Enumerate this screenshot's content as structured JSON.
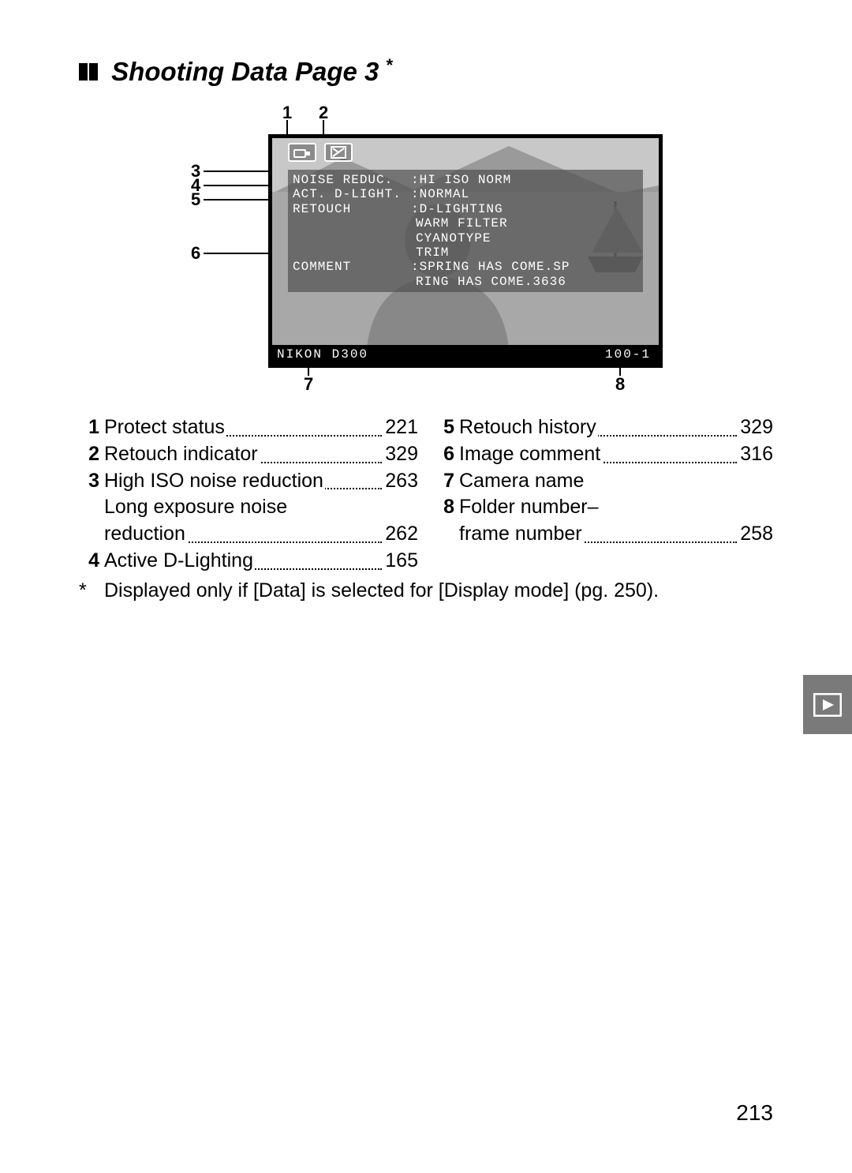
{
  "title": "Shooting Data Page 3",
  "asterisk": "*",
  "diagram": {
    "top_callouts": [
      "1",
      "2"
    ],
    "left_callouts": [
      "3",
      "4",
      "5",
      "6"
    ],
    "bottom_callouts": [
      "7",
      "8"
    ],
    "overlay_rows": [
      {
        "label": "NOISE REDUC.",
        "value": ":HI ISO NORM"
      },
      {
        "label": "ACT. D-LIGHT.",
        "value": ":NORMAL"
      },
      {
        "label": "RETOUCH",
        "value": ":D-LIGHTING"
      }
    ],
    "overlay_sublines": [
      "WARM FILTER",
      "CYANOTYPE",
      "TRIM"
    ],
    "overlay_comment": {
      "label": "COMMENT",
      "value": ":SPRING HAS COME.SP"
    },
    "overlay_comment_line2": "RING HAS COME.3636",
    "camera_name": "NIKON D300",
    "folder_frame": "100-1",
    "colors": {
      "screen_border": "#000000",
      "screen_bg": "#808080",
      "scene_bg": "#b8b8b8",
      "overlay_text": "#ffffff"
    }
  },
  "legend_left": [
    {
      "n": "1",
      "label": "Protect status",
      "page": "221"
    },
    {
      "n": "2",
      "label": "Retouch indicator",
      "page": "329"
    },
    {
      "n": "3",
      "label": "High ISO noise reduction",
      "page": "263"
    },
    {
      "n": "",
      "label": "Long exposure noise",
      "page": ""
    },
    {
      "n": "",
      "label": "reduction",
      "page": "262"
    },
    {
      "n": "4",
      "label": "Active D-Lighting",
      "page": "165"
    }
  ],
  "legend_right": [
    {
      "n": "5",
      "label": "Retouch history",
      "page": "329"
    },
    {
      "n": "6",
      "label": "Image comment",
      "page": "316"
    },
    {
      "n": "7",
      "label": "Camera name",
      "page": ""
    },
    {
      "n": "8",
      "label": "Folder number–",
      "page": ""
    },
    {
      "n": "",
      "label": "frame number",
      "page": "258"
    }
  ],
  "footnote": "Displayed only if [Data] is selected for [Display mode] (pg. 250).",
  "page_number": "213"
}
